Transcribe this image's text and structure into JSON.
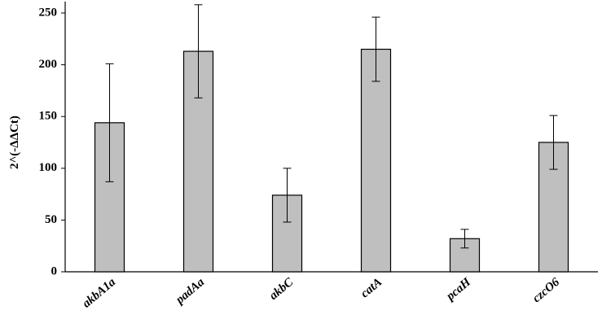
{
  "chart_data": {
    "type": "bar",
    "y_label": "2^(-ΔΔCt)",
    "categories": [
      "akbA1a",
      "padAa",
      "akbC",
      "catA",
      "pcaH",
      "czcO6"
    ],
    "values": [
      144,
      213,
      74,
      215,
      32,
      125
    ],
    "errors": [
      57,
      45,
      26,
      31,
      9,
      26
    ],
    "color": "#bfbfbf",
    "ylim": [
      0,
      250
    ],
    "yticks": [
      0,
      50,
      100,
      150,
      200,
      250
    ],
    "grid": false
  }
}
